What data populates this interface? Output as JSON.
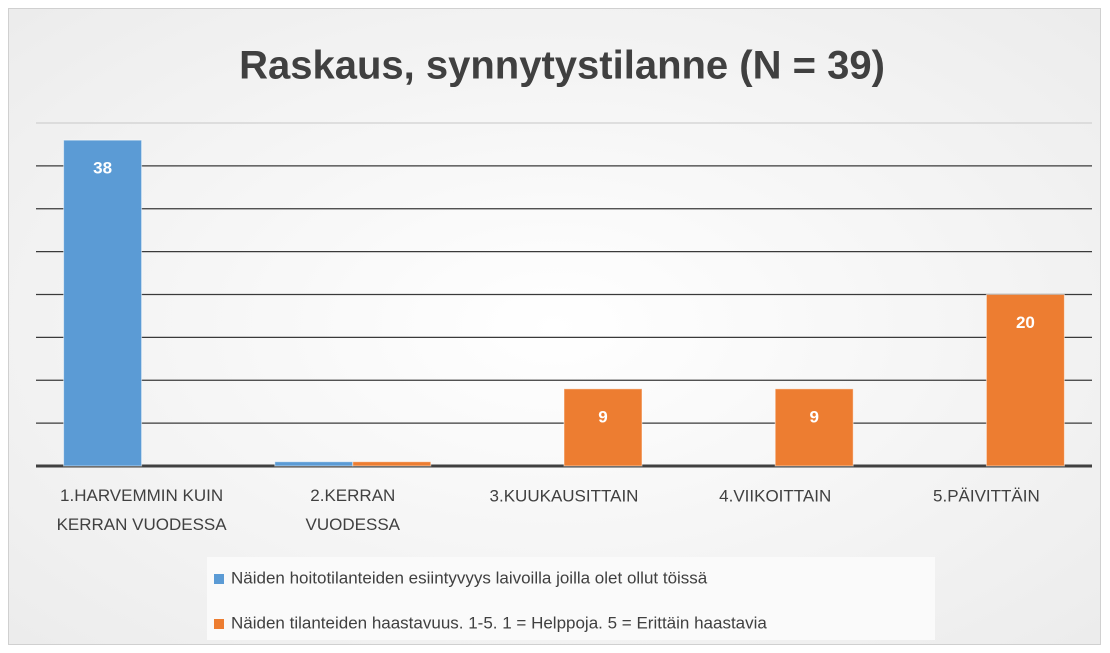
{
  "chart_data": {
    "type": "bar",
    "title": "Raskaus, synnytystilanne (N = 39)",
    "categories": [
      "1.HARVEMMIN KUIN KERRAN VUODESSA",
      "2.KERRAN VUODESSA",
      "3.KUUKAUSITTAIN",
      "4.VIIKOITTAIN",
      "5.PÄIVITTÄIN"
    ],
    "series": [
      {
        "name": "Näiden hoitotilanteiden esiintyvyys laivoilla joilla olet ollut töissä",
        "color": "#5b9bd5",
        "values": [
          38,
          0.5,
          null,
          null,
          null
        ]
      },
      {
        "name": "Näiden tilanteiden haastavuus. 1-5. 1 = Helppoja. 5 = Erittäin haastavia",
        "color": "#ed7d31",
        "values": [
          null,
          0.5,
          9,
          9,
          20
        ]
      }
    ],
    "ylim": [
      0,
      40
    ],
    "yticks": [
      0,
      5,
      10,
      15,
      20,
      25,
      30,
      35,
      40
    ],
    "grid": true,
    "legend": "bottom"
  }
}
